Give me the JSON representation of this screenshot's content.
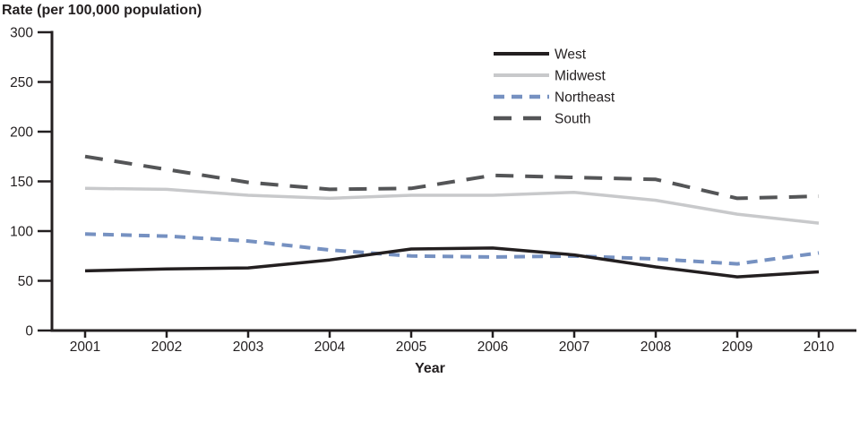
{
  "chart_data": {
    "type": "line",
    "title": "",
    "ylabel": "Rate (per 100,000 population)",
    "xlabel": "Year",
    "x": [
      2001,
      2002,
      2003,
      2004,
      2005,
      2006,
      2007,
      2008,
      2009,
      2010
    ],
    "ylim": [
      0,
      300
    ],
    "yticks": [
      0,
      50,
      100,
      150,
      200,
      250,
      300
    ],
    "grid": false,
    "legend_position": "top-center",
    "axis_color": "#231f20",
    "series": [
      {
        "name": "West",
        "color": "#231f20",
        "style": "solid",
        "values": [
          60,
          62,
          63,
          71,
          82,
          83,
          76,
          64,
          54,
          59
        ]
      },
      {
        "name": "Midwest",
        "color": "#c8c9cb",
        "style": "solid",
        "values": [
          143,
          142,
          136,
          133,
          136,
          136,
          139,
          131,
          117,
          108
        ]
      },
      {
        "name": "Northeast",
        "color": "#7691c1",
        "style": "dashed",
        "values": [
          97,
          95,
          90,
          81,
          75,
          74,
          75,
          72,
          67,
          78
        ]
      },
      {
        "name": "South",
        "color": "#545557",
        "style": "long-dash",
        "values": [
          175,
          162,
          149,
          142,
          143,
          156,
          154,
          152,
          133,
          135
        ]
      }
    ]
  }
}
